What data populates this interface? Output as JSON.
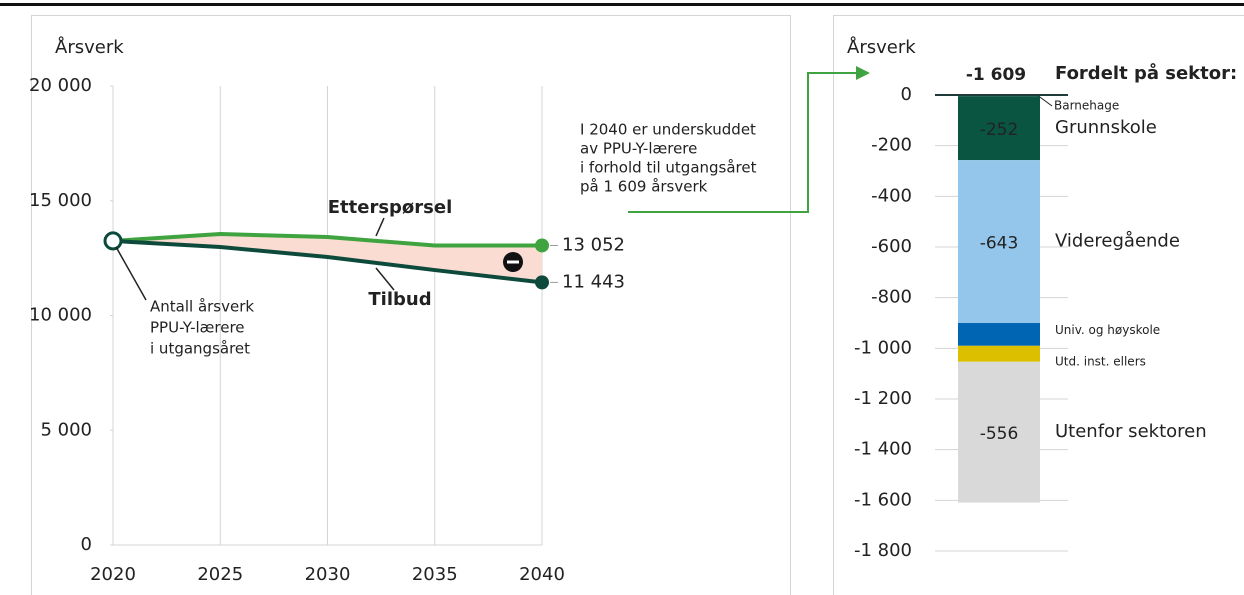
{
  "chart_data": [
    {
      "type": "line",
      "y_label": "Årsverk",
      "x": [
        2020,
        2025,
        2030,
        2035,
        2040
      ],
      "xlim": [
        2020,
        2040
      ],
      "xticks": [
        2020,
        2025,
        2030,
        2035,
        2040
      ],
      "ylim": [
        0,
        20000
      ],
      "yticks": [
        0,
        {
          "value": 5000,
          "label": "5 000"
        },
        {
          "value": 10000,
          "label": "10 000"
        },
        {
          "value": 15000,
          "label": "15 000"
        },
        {
          "value": 20000,
          "label": "20 000"
        }
      ],
      "series": [
        {
          "name": "Etterspørsel",
          "color": "#3fa33f",
          "values": [
            13250,
            13550,
            13420,
            13050,
            13052
          ],
          "value_labels": [
            null,
            null,
            null,
            null,
            "13 052"
          ]
        },
        {
          "name": "Tilbud",
          "color": "#0e4a3c",
          "values": [
            13250,
            12985,
            12550,
            11980,
            11443
          ],
          "value_labels": [
            null,
            null,
            null,
            null,
            "11 443"
          ]
        }
      ],
      "annotations": [
        {
          "lines": [
            "Antall årsverk",
            "PPU-Y-lærere",
            "i utgangsåret"
          ]
        },
        {
          "lines": [
            "I 2040 er underskuddet",
            "av PPU-Y-lærere",
            "i forhold til utgangsåret",
            "på 1 609 årsverk"
          ]
        }
      ]
    },
    {
      "type": "stacked_bar",
      "y_label": "Årsverk",
      "title": "Fordelt på sektor:",
      "total": -1609,
      "total_label": "-1 609",
      "ylim": [
        -1800,
        0
      ],
      "yticks": [
        0,
        -200,
        -400,
        -600,
        -800,
        {
          "value": -1000,
          "label": "-1 000"
        },
        {
          "value": -1200,
          "label": "-1 200"
        },
        {
          "value": -1400,
          "label": "-1 400"
        },
        {
          "value": -1600,
          "label": "-1 600"
        },
        {
          "value": -1800,
          "label": "-1 800"
        }
      ],
      "segments": [
        {
          "name": "Barnehage",
          "color": "#1f3b3a",
          "value": -5
        },
        {
          "name": "Grunnskole",
          "color": "#0a5542",
          "value": -252
        },
        {
          "name": "Videregående",
          "color": "#93c6ea",
          "value": -643
        },
        {
          "name": "Univ. og høyskole",
          "color": "#0066b3",
          "value": -90
        },
        {
          "name": "Utd. inst. ellers",
          "color": "#dcc000",
          "value": -63
        },
        {
          "name": "Utenfor sektoren",
          "color": "#d9d9d9",
          "value": -556
        }
      ]
    }
  ]
}
